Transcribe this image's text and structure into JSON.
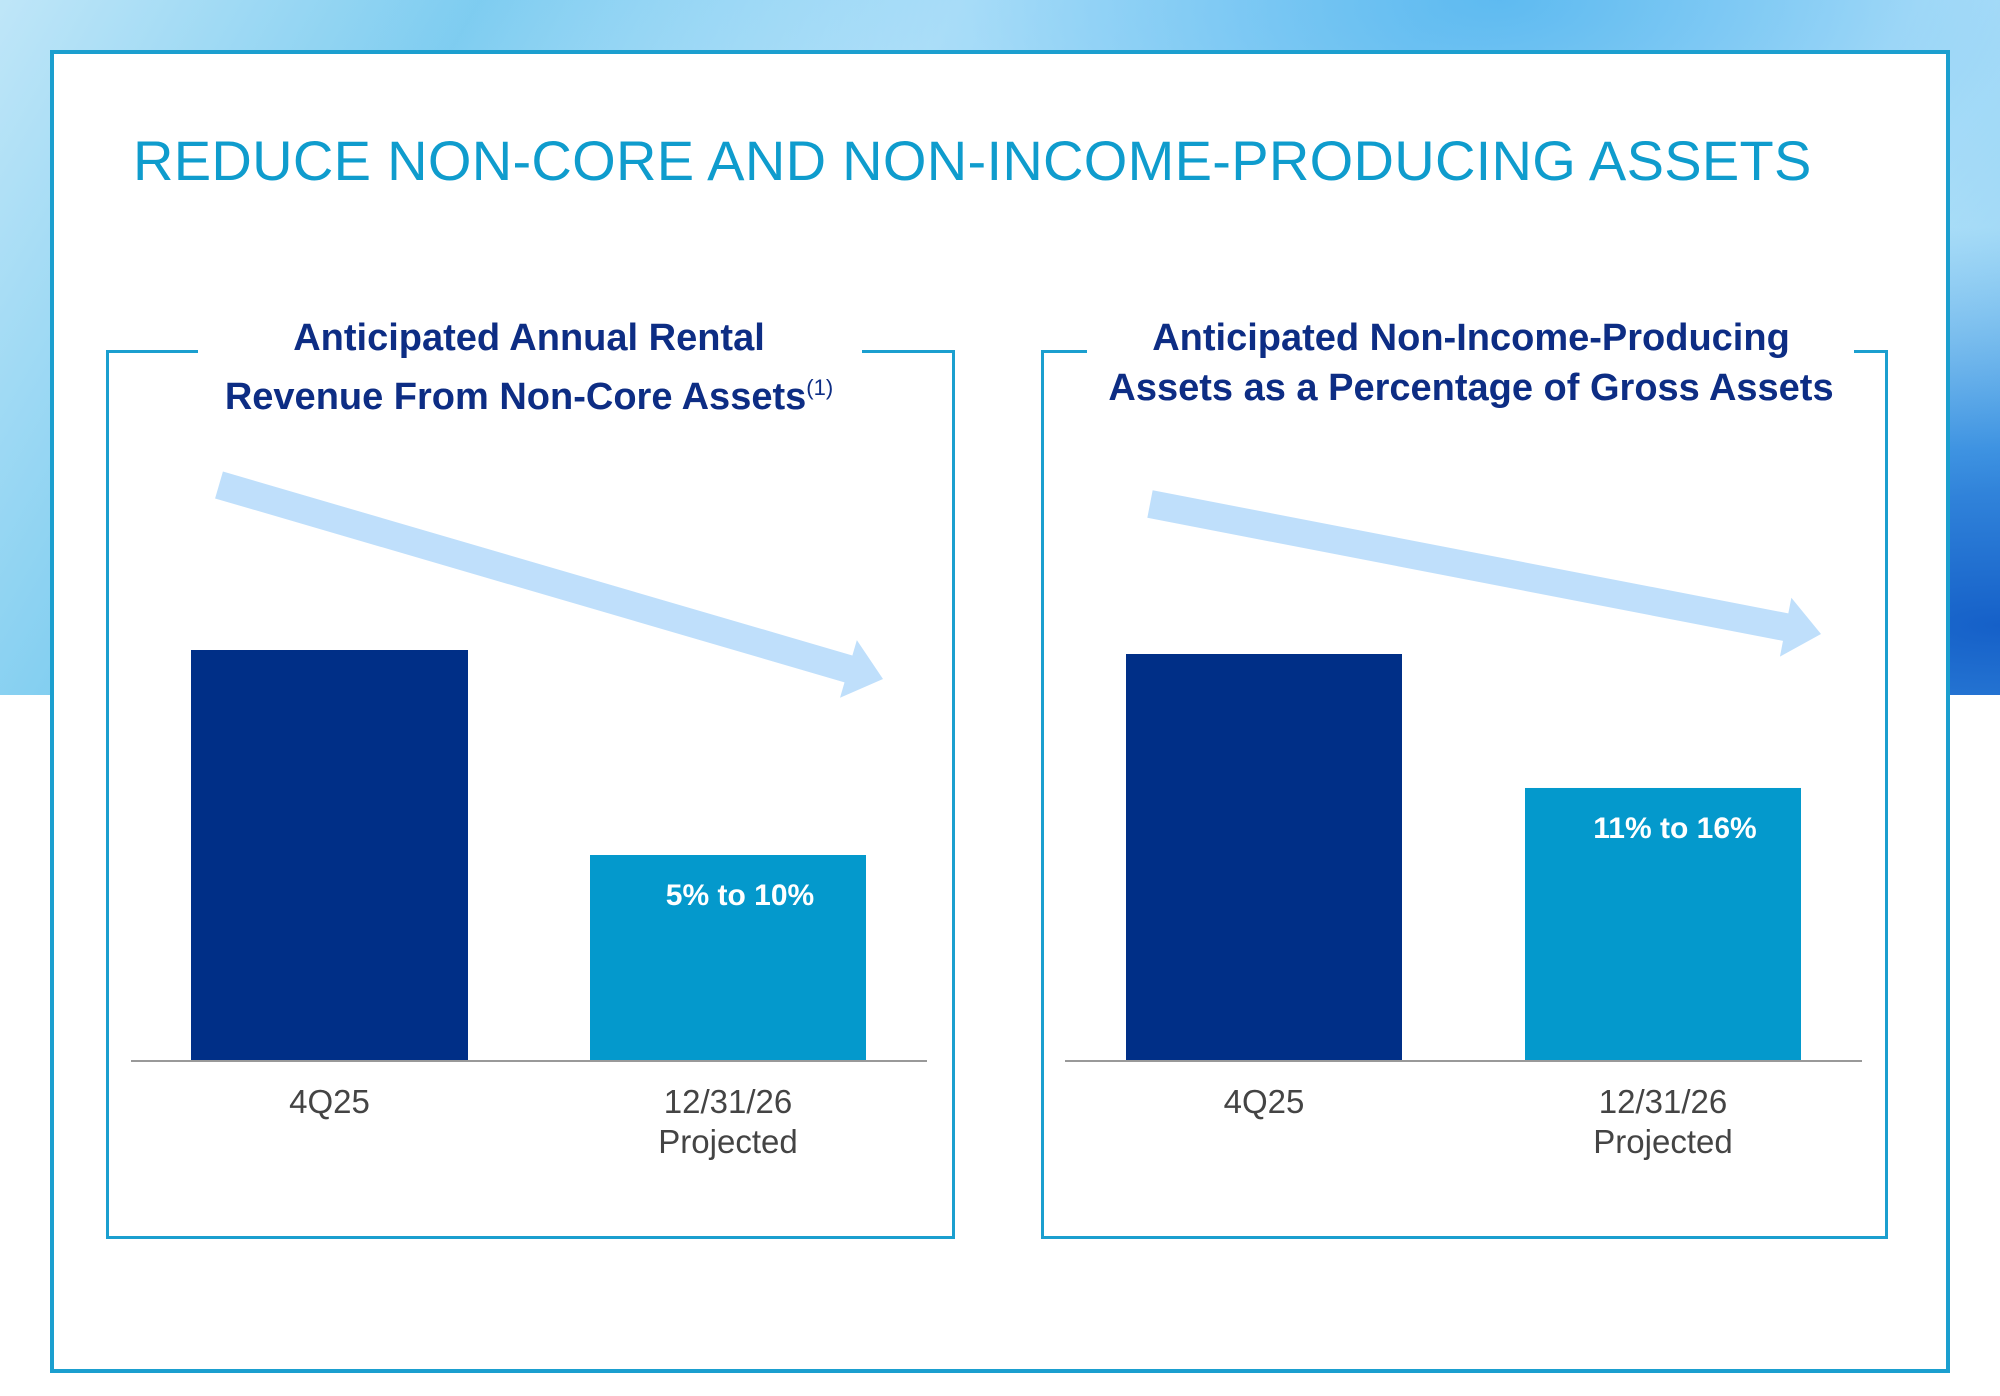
{
  "page": {
    "title": "REDUCE NON-CORE AND NON-INCOME-PRODUCING ASSETS"
  },
  "colors": {
    "frame": "#1b9fcf",
    "title": "#0f9ccd",
    "panel_title": "#0d2d84",
    "bar_current": "#002f87",
    "bar_projected": "#0499cc",
    "trend_arrow": "#bfdffb",
    "axis": "#999999",
    "tick_label": "#444444"
  },
  "chart_data": [
    {
      "type": "bar",
      "title_line1": "Anticipated Annual Rental",
      "title_line2": "Revenue From Non-Core Assets",
      "title_footnote": "(1)",
      "categories": [
        [
          "4Q25"
        ],
        [
          "12/31/26",
          "Projected"
        ]
      ],
      "relative_values": [
        1.0,
        0.5
      ],
      "data_labels": [
        "",
        "5% to 10%"
      ],
      "trend": "decreasing",
      "grid": false,
      "legend": "none"
    },
    {
      "type": "bar",
      "title_line1": "Anticipated Non-Income-Producing",
      "title_line2": "Assets as a Percentage of Gross Assets",
      "title_footnote": "",
      "categories": [
        [
          "4Q25"
        ],
        [
          "12/31/26",
          "Projected"
        ]
      ],
      "relative_values": [
        1.0,
        0.67
      ],
      "data_labels": [
        "",
        "11% to 16%"
      ],
      "trend": "decreasing",
      "grid": false,
      "legend": "none"
    }
  ]
}
